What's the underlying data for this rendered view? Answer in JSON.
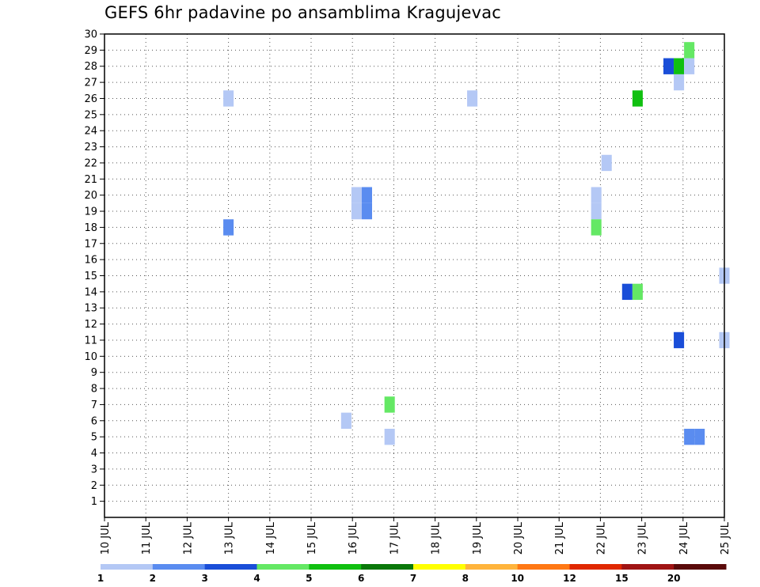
{
  "chart_data": {
    "type": "heatmap",
    "title": "GEFS 6hr padavine po ansamblima Kragujevac",
    "x_labels": [
      "10 JUL",
      "11 JUL",
      "12 JUL",
      "13 JUL",
      "14 JUL",
      "15 JUL",
      "16 JUL",
      "17 JUL",
      "18 JUL",
      "19 JUL",
      "20 JUL",
      "21 JUL",
      "22 JUL",
      "23 JUL",
      "24 JUL",
      "25 JUL"
    ],
    "y_labels": [
      "1",
      "2",
      "3",
      "4",
      "5",
      "6",
      "7",
      "8",
      "9",
      "10",
      "11",
      "12",
      "13",
      "14",
      "15",
      "16",
      "17",
      "18",
      "19",
      "20",
      "21",
      "22",
      "23",
      "24",
      "25",
      "26",
      "27",
      "28",
      "29",
      "30"
    ],
    "x_step_hours": 6,
    "ylim": [
      0,
      30
    ],
    "grid": true,
    "legend": "bottom",
    "colorbar": {
      "labels": [
        "1",
        "2",
        "3",
        "4",
        "5",
        "6",
        "7",
        "8",
        "10",
        "12",
        "15",
        "20"
      ],
      "colors": [
        "#b4c8f5",
        "#5a8cf0",
        "#1a4ed8",
        "#64e864",
        "#10c010",
        "#0a780a",
        "#ffff00",
        "#ffb43c",
        "#ff7814",
        "#e02800",
        "#a01414",
        "#5a0a0a"
      ]
    },
    "cells": [
      {
        "day": 13.0,
        "member": 26,
        "level": 1
      },
      {
        "day": 18.9,
        "member": 26,
        "level": 1
      },
      {
        "day": 22.9,
        "member": 26,
        "level": 5
      },
      {
        "day": 13.0,
        "member": 18,
        "level": 2
      },
      {
        "day": 16.1,
        "member": 20,
        "level": 1
      },
      {
        "day": 16.35,
        "member": 20,
        "level": 2
      },
      {
        "day": 16.1,
        "member": 19,
        "level": 1
      },
      {
        "day": 16.35,
        "member": 19,
        "level": 2
      },
      {
        "day": 21.9,
        "member": 20,
        "level": 1
      },
      {
        "day": 21.9,
        "member": 19,
        "level": 1
      },
      {
        "day": 21.9,
        "member": 18,
        "level": 4
      },
      {
        "day": 22.15,
        "member": 22,
        "level": 1
      },
      {
        "day": 22.65,
        "member": 14,
        "level": 3
      },
      {
        "day": 22.9,
        "member": 14,
        "level": 4
      },
      {
        "day": 23.65,
        "member": 28,
        "level": 3
      },
      {
        "day": 23.9,
        "member": 28,
        "level": 5
      },
      {
        "day": 24.15,
        "member": 28,
        "level": 1
      },
      {
        "day": 23.9,
        "member": 27,
        "level": 1
      },
      {
        "day": 24.15,
        "member": 29,
        "level": 4
      },
      {
        "day": 23.9,
        "member": 11,
        "level": 3
      },
      {
        "day": 24.15,
        "member": 5,
        "level": 2
      },
      {
        "day": 24.4,
        "member": 5,
        "level": 2
      },
      {
        "day": 25.0,
        "member": 15,
        "level": 1
      },
      {
        "day": 25.0,
        "member": 11,
        "level": 1
      },
      {
        "day": 15.85,
        "member": 6,
        "level": 1
      },
      {
        "day": 16.9,
        "member": 7,
        "level": 4
      },
      {
        "day": 16.9,
        "member": 5,
        "level": 1
      }
    ]
  }
}
